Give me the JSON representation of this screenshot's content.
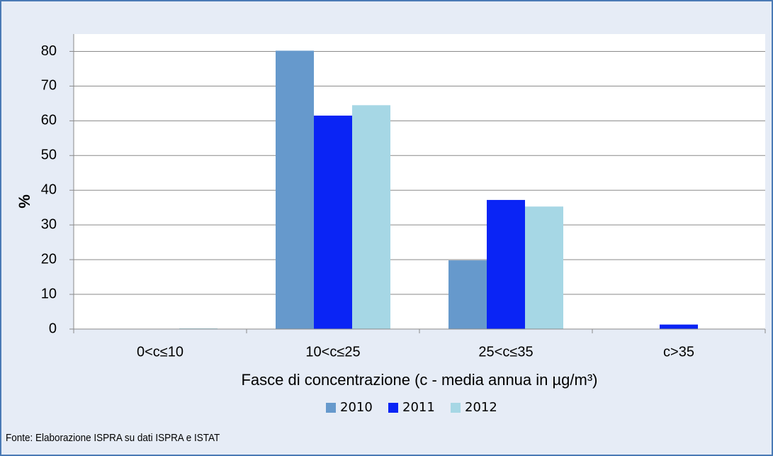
{
  "chart_data": {
    "type": "bar",
    "categories": [
      "0<c≤10",
      "10<c≤25",
      "25<c≤35",
      "c>35"
    ],
    "series": [
      {
        "name": "2010",
        "color": "#6699cc",
        "values": [
          0,
          80.2,
          19.8,
          0
        ]
      },
      {
        "name": "2011",
        "color": "#0a24f5",
        "values": [
          0,
          61.5,
          37.2,
          1.3
        ]
      },
      {
        "name": "2012",
        "color": "#a6d7e5",
        "values": [
          0.2,
          64.5,
          35.3,
          0
        ]
      }
    ],
    "ylim": [
      0,
      85
    ],
    "yticks": [
      0,
      10,
      20,
      30,
      40,
      50,
      60,
      70,
      80
    ],
    "grid": true,
    "ylabel": "%",
    "xlabel": "Fasce di concentrazione (c - media annua in µg/m³)",
    "legend": "bottom",
    "source": "Fonte: Elaborazione ISPRA su dati ISPRA e ISTAT"
  }
}
